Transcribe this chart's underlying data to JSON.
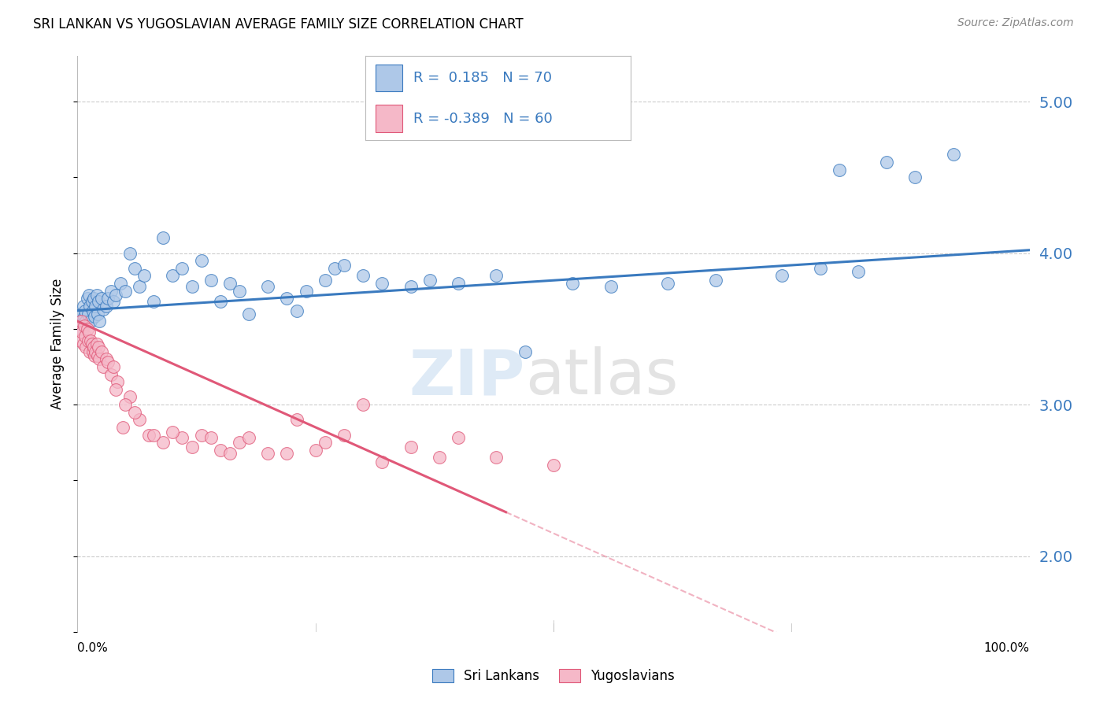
{
  "title": "SRI LANKAN VS YUGOSLAVIAN AVERAGE FAMILY SIZE CORRELATION CHART",
  "source": "Source: ZipAtlas.com",
  "ylabel": "Average Family Size",
  "right_yticks": [
    2.0,
    3.0,
    4.0,
    5.0
  ],
  "blue_color": "#aec8e8",
  "pink_color": "#f5b8c8",
  "blue_line_color": "#3a7abf",
  "pink_line_color": "#e05878",
  "blue_R": 0.185,
  "blue_N": 70,
  "pink_R": -0.389,
  "pink_N": 60,
  "blue_intercept": 3.62,
  "blue_slope": 0.004,
  "pink_intercept": 3.55,
  "pink_slope": -0.028,
  "blue_scatter_x": [
    0.3,
    0.4,
    0.5,
    0.6,
    0.7,
    0.8,
    0.9,
    1.0,
    1.1,
    1.2,
    1.3,
    1.4,
    1.5,
    1.6,
    1.7,
    1.8,
    1.9,
    2.0,
    2.1,
    2.2,
    2.3,
    2.5,
    2.7,
    3.0,
    3.2,
    3.5,
    3.8,
    4.0,
    4.5,
    5.0,
    5.5,
    6.0,
    6.5,
    7.0,
    8.0,
    9.0,
    10.0,
    11.0,
    12.0,
    13.0,
    14.0,
    15.0,
    16.0,
    17.0,
    18.0,
    20.0,
    22.0,
    23.0,
    24.0,
    26.0,
    27.0,
    28.0,
    30.0,
    32.0,
    35.0,
    37.0,
    40.0,
    44.0,
    47.0,
    52.0,
    56.0,
    62.0,
    67.0,
    74.0,
    78.0,
    82.0,
    85.0,
    88.0,
    92.0,
    80.0
  ],
  "blue_scatter_y": [
    3.55,
    3.6,
    3.5,
    3.65,
    3.58,
    3.62,
    3.55,
    3.7,
    3.6,
    3.72,
    3.65,
    3.55,
    3.68,
    3.62,
    3.7,
    3.58,
    3.65,
    3.72,
    3.6,
    3.68,
    3.55,
    3.7,
    3.63,
    3.65,
    3.7,
    3.75,
    3.68,
    3.72,
    3.8,
    3.75,
    4.0,
    3.9,
    3.78,
    3.85,
    3.68,
    4.1,
    3.85,
    3.9,
    3.78,
    3.95,
    3.82,
    3.68,
    3.8,
    3.75,
    3.6,
    3.78,
    3.7,
    3.62,
    3.75,
    3.82,
    3.9,
    3.92,
    3.85,
    3.8,
    3.78,
    3.82,
    3.8,
    3.85,
    3.35,
    3.8,
    3.78,
    3.8,
    3.82,
    3.85,
    3.9,
    3.88,
    4.6,
    4.5,
    4.65,
    4.55
  ],
  "pink_scatter_x": [
    0.2,
    0.3,
    0.4,
    0.5,
    0.6,
    0.7,
    0.8,
    0.9,
    1.0,
    1.1,
    1.2,
    1.3,
    1.4,
    1.5,
    1.6,
    1.7,
    1.8,
    1.9,
    2.0,
    2.1,
    2.2,
    2.3,
    2.5,
    2.7,
    3.0,
    3.2,
    3.5,
    3.8,
    4.2,
    4.8,
    5.5,
    6.5,
    7.5,
    9.0,
    11.0,
    13.0,
    15.0,
    17.0,
    20.0,
    23.0,
    26.0,
    28.0,
    30.0,
    35.0,
    40.0,
    44.0,
    50.0,
    4.0,
    5.0,
    6.0,
    8.0,
    10.0,
    12.0,
    14.0,
    16.0,
    18.0,
    22.0,
    25.0,
    32.0,
    38.0
  ],
  "pink_scatter_y": [
    3.5,
    3.42,
    3.55,
    3.48,
    3.4,
    3.52,
    3.45,
    3.38,
    3.5,
    3.42,
    3.48,
    3.35,
    3.42,
    3.4,
    3.35,
    3.38,
    3.32,
    3.35,
    3.4,
    3.32,
    3.38,
    3.3,
    3.35,
    3.25,
    3.3,
    3.28,
    3.2,
    3.25,
    3.15,
    2.85,
    3.05,
    2.9,
    2.8,
    2.75,
    2.78,
    2.8,
    2.7,
    2.75,
    2.68,
    2.9,
    2.75,
    2.8,
    3.0,
    2.72,
    2.78,
    2.65,
    2.6,
    3.1,
    3.0,
    2.95,
    2.8,
    2.82,
    2.72,
    2.78,
    2.68,
    2.78,
    2.68,
    2.7,
    2.62,
    2.65
  ],
  "figsize": [
    14.06,
    8.92
  ],
  "dpi": 100
}
